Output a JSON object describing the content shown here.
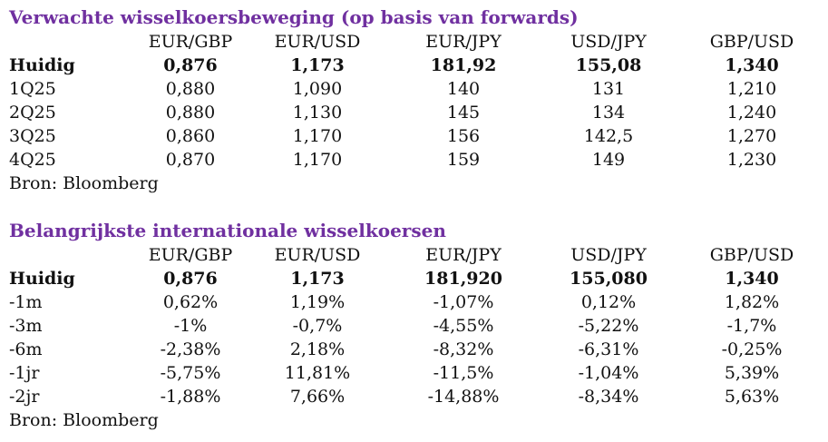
{
  "section1": {
    "title": "Verwachte wisselkoersbeweging (op basis van forwards)",
    "headers": [
      "EUR/GBP",
      "EUR/USD",
      "EUR/JPY",
      "USD/JPY",
      "GBP/USD"
    ],
    "rows": [
      {
        "label": "Huidig",
        "values": [
          "0,876",
          "1,173",
          "181,92",
          "155,08",
          "1,340"
        ],
        "bold": true
      },
      {
        "label": "1Q25",
        "values": [
          "0,880",
          "1,090",
          "140",
          "131",
          "1,210"
        ]
      },
      {
        "label": "2Q25",
        "values": [
          "0,880",
          "1,130",
          "145",
          "134",
          "1,240"
        ]
      },
      {
        "label": "3Q25",
        "values": [
          "0,860",
          "1,170",
          "156",
          "142,5",
          "1,270"
        ]
      },
      {
        "label": "4Q25",
        "values": [
          "0,870",
          "1,170",
          "159",
          "149",
          "1,230"
        ]
      }
    ],
    "source": "Bron: Bloomberg"
  },
  "section2": {
    "title": "Belangrijkste internationale wisselkoersen",
    "headers": [
      "EUR/GBP",
      "EUR/USD",
      "EUR/JPY",
      "USD/JPY",
      "GBP/USD"
    ],
    "rows": [
      {
        "label": "Huidig",
        "values": [
          "0,876",
          "1,173",
          "181,920",
          "155,080",
          "1,340"
        ],
        "bold": true
      },
      {
        "label": "-1m",
        "values": [
          "0,62%",
          "1,19%",
          "-1,07%",
          "0,12%",
          "1,82%"
        ]
      },
      {
        "label": "-3m",
        "values": [
          "-1%",
          "-0,7%",
          "-4,55%",
          "-5,22%",
          "-1,7%"
        ]
      },
      {
        "label": "-6m",
        "values": [
          "-2,38%",
          "2,18%",
          "-8,32%",
          "-6,31%",
          "-0,25%"
        ]
      },
      {
        "label": "-1jr",
        "values": [
          "-5,75%",
          "11,81%",
          "-11,5%",
          "-1,04%",
          "5,39%"
        ]
      },
      {
        "label": "-2jr",
        "values": [
          "-1,88%",
          "7,66%",
          "-14,88%",
          "-8,34%",
          "5,63%"
        ]
      }
    ],
    "source": "Bron: Bloomberg"
  }
}
